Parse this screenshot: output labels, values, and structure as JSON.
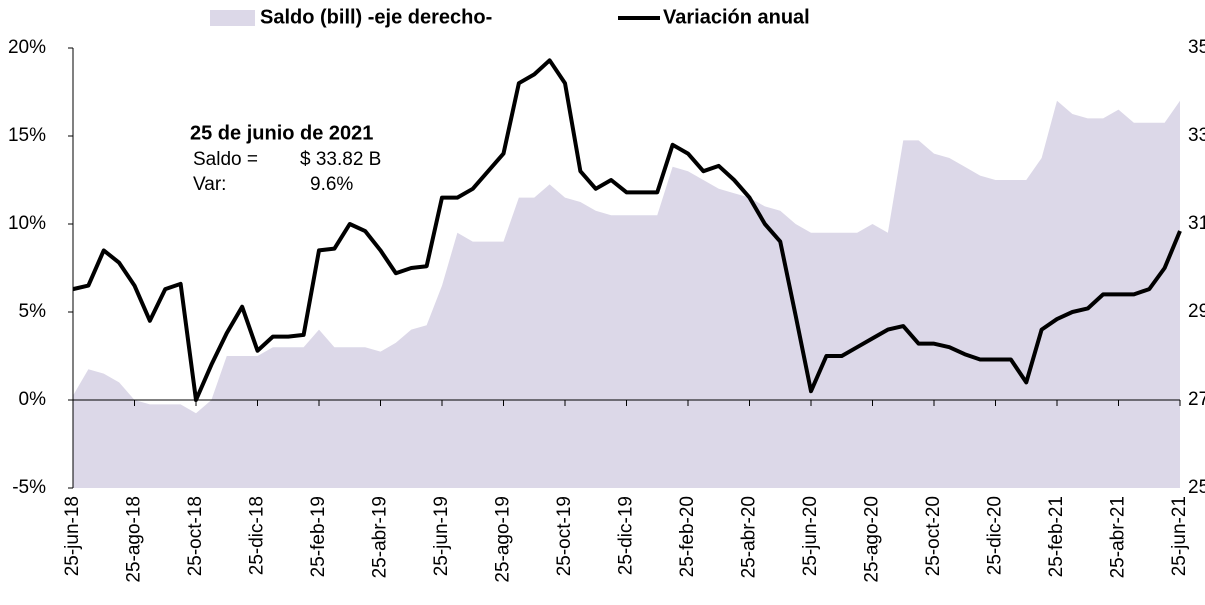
{
  "chart_data": {
    "type": "area-line",
    "categories": [
      "25-jun-18",
      null,
      null,
      null,
      "25-ago-18",
      null,
      null,
      null,
      "25-oct-18",
      null,
      null,
      null,
      "25-dic-18",
      null,
      null,
      null,
      "25-feb-19",
      null,
      null,
      null,
      "25-abr-19",
      null,
      null,
      null,
      "25-jun-19",
      null,
      null,
      null,
      "25-ago-19",
      null,
      null,
      null,
      "25-oct-19",
      null,
      null,
      null,
      "25-dic-19",
      null,
      null,
      null,
      "25-feb-20",
      null,
      null,
      null,
      "25-abr-20",
      null,
      null,
      null,
      "25-jun-20",
      null,
      null,
      null,
      "25-ago-20",
      null,
      null,
      null,
      "25-oct-20",
      null,
      null,
      null,
      "25-dic-20",
      null,
      null,
      null,
      "25-feb-21",
      null,
      null,
      null,
      "25-abr-21",
      null,
      null,
      null,
      "25-jun-21"
    ],
    "series": [
      {
        "name": "Saldo (bill) -eje derecho-",
        "color": "#dcd8e8",
        "axis": "y2",
        "kind": "area",
        "values": [
          27.1,
          27.7,
          27.6,
          27.4,
          27.0,
          26.9,
          26.9,
          26.9,
          26.7,
          27.0,
          28.0,
          28.0,
          28.0,
          28.2,
          28.2,
          28.2,
          28.6,
          28.2,
          28.2,
          28.2,
          28.1,
          28.3,
          28.6,
          28.7,
          29.6,
          30.8,
          30.6,
          30.6,
          30.6,
          31.6,
          31.6,
          31.9,
          31.6,
          31.5,
          31.3,
          31.2,
          31.2,
          31.2,
          31.2,
          32.3,
          32.2,
          32.0,
          31.8,
          31.7,
          31.6,
          31.4,
          31.3,
          31.0,
          30.8,
          30.8,
          30.8,
          30.8,
          31.0,
          30.8,
          32.9,
          32.9,
          32.6,
          32.5,
          32.3,
          32.1,
          32.0,
          32.0,
          32.0,
          32.5,
          33.8,
          33.5,
          33.4,
          33.4,
          33.6,
          33.3,
          33.3,
          33.3,
          33.8
        ]
      },
      {
        "name": "Variación anual",
        "color": "#000000",
        "kind": "line",
        "values": [
          6.3,
          6.5,
          8.5,
          7.8,
          6.5,
          4.5,
          6.3,
          6.6,
          0,
          2.0,
          3.8,
          5.3,
          2.8,
          3.6,
          3.6,
          3.7,
          8.5,
          8.6,
          10.0,
          9.6,
          8.5,
          7.2,
          7.5,
          7.6,
          11.5,
          11.5,
          12.0,
          13.0,
          14.0,
          18.0,
          18.5,
          19.3,
          18.0,
          13.0,
          12.0,
          12.5,
          11.8,
          11.8,
          11.8,
          14.5,
          14.0,
          13.0,
          13.3,
          12.5,
          11.5,
          10.0,
          9.0,
          4.8,
          0.5,
          2.5,
          2.5,
          3.0,
          3.5,
          4.0,
          4.2,
          3.2,
          3.2,
          3.0,
          2.6,
          2.3,
          2.3,
          2.3,
          1.0,
          4.0,
          4.6,
          5.0,
          5.2,
          6.0,
          6.0,
          6.0,
          6.3,
          7.5,
          9.6
        ]
      }
    ],
    "ylim": [
      -5,
      20
    ],
    "yticks": [
      {
        "value": -5,
        "label": "-5%"
      },
      {
        "value": 0,
        "label": "0%"
      },
      {
        "value": 5,
        "label": "5%"
      },
      {
        "value": 10,
        "label": "10%"
      },
      {
        "value": 15,
        "label": "15%"
      },
      {
        "value": 20,
        "label": "20%"
      }
    ],
    "y2lim": [
      25,
      35
    ],
    "y2ticks": [
      25,
      27,
      29,
      31,
      33,
      35
    ],
    "annotations": {
      "date": "25 de junio de 2021",
      "saldo_label": "Saldo =",
      "saldo_value": "$ 33.82 B",
      "var_label": "Var:",
      "var_value": "9.6%"
    }
  }
}
